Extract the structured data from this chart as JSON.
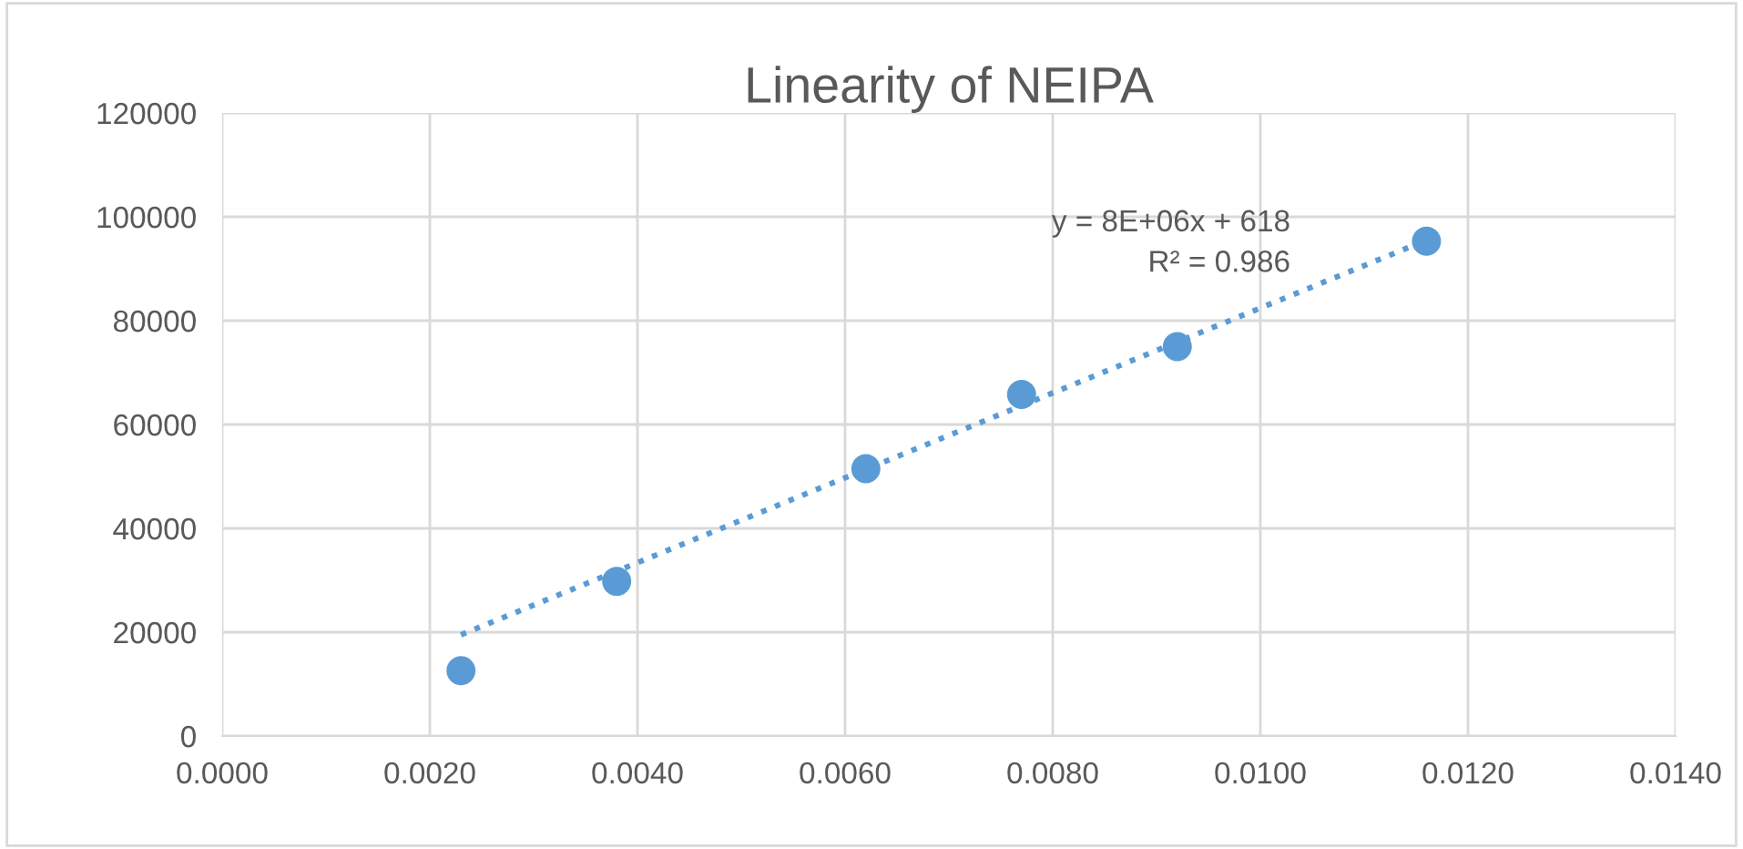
{
  "chart_data": {
    "type": "scatter",
    "title": "Linearity of NEIPA",
    "series": [
      {
        "color": "#5b9bd5",
        "marker": "circle",
        "x": [
          0.0023,
          0.0038,
          0.0062,
          0.0077,
          0.0092,
          0.0116
        ],
        "values": [
          12600,
          29800,
          51500,
          65800,
          75000,
          95300
        ]
      },
      {
        "type": "line",
        "color": "#5b9bd5",
        "marker": "none",
        "line_style": "dotted",
        "x": [
          0.0023,
          0.0116
        ],
        "values": [
          19500,
          95500
        ]
      }
    ],
    "annotations": [
      "y = 8E+06x + 618",
      "R² = 0.986"
    ],
    "xlim": [
      0,
      0.014
    ],
    "xticks": [
      {
        "value": 0,
        "label": "0.0000"
      },
      {
        "value": 0.002,
        "label": "0.0020"
      },
      {
        "value": 0.004,
        "label": "0.0040"
      },
      {
        "value": 0.006,
        "label": "0.0060"
      },
      {
        "value": 0.008,
        "label": "0.0080"
      },
      {
        "value": 0.01,
        "label": "0.0100"
      },
      {
        "value": 0.012,
        "label": "0.0120"
      },
      {
        "value": 0.014,
        "label": "0.0140"
      }
    ],
    "ylim": [
      0,
      120000
    ],
    "yticks": [
      0,
      20000,
      40000,
      60000,
      80000,
      100000,
      120000
    ],
    "grid": true,
    "legend": false
  }
}
